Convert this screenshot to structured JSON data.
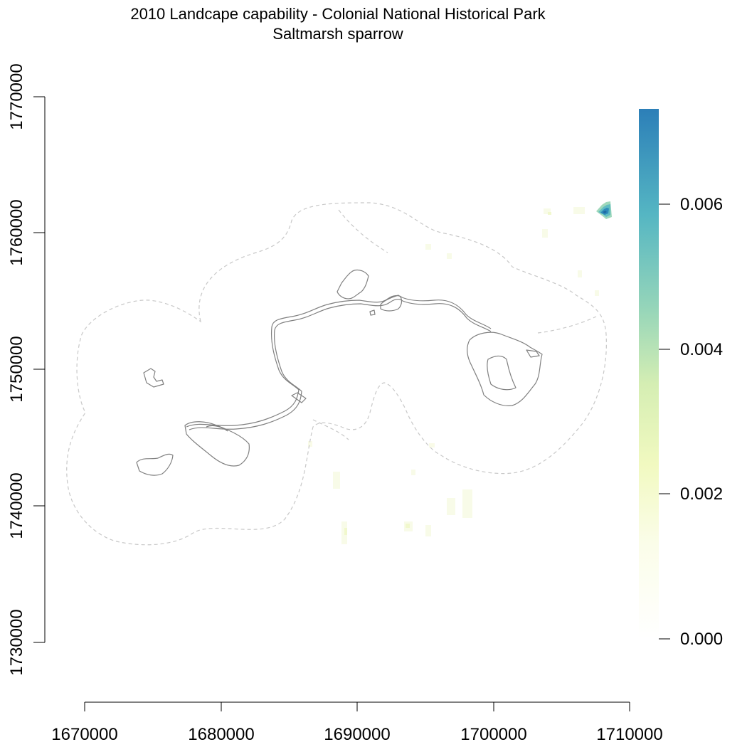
{
  "map": {
    "title": "2010 Landcape capability - Colonial National Historical Park",
    "subtitle": "Saltmarsh sparrow",
    "x_axis": {
      "range": [
        1670000,
        1710000
      ],
      "ticks": [
        "1670000",
        "1680000",
        "1690000",
        "1700000",
        "1710000"
      ]
    },
    "y_axis": {
      "range": [
        1730000,
        1770000
      ],
      "ticks": [
        "1730000",
        "1740000",
        "1750000",
        "1760000",
        "1770000"
      ]
    },
    "legend": {
      "range": [
        0,
        0.0073
      ],
      "ticks": [
        "0.000",
        "0.002",
        "0.004",
        "0.006"
      ],
      "colors": [
        "#ffffff",
        "#f7fbdf",
        "#edf8b1",
        "#c7e9b4",
        "#7fcdbb",
        "#41b6c4",
        "#2c7fb8"
      ]
    },
    "colors": {
      "park_boundary": "#808080",
      "buffer_boundary": "#c8c8c8",
      "axis": "#000000"
    }
  }
}
